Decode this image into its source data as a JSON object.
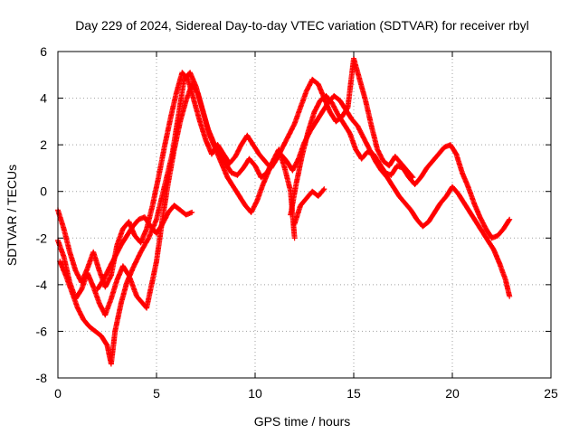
{
  "chart_data": {
    "type": "scatter",
    "title": "Day 229 of 2024, Sidereal Day-to-day VTEC variation (SDTVAR) for receiver rbyl",
    "xlabel": "GPS time / hours",
    "ylabel": "SDTVAR / TECUs",
    "xlim": [
      0,
      25
    ],
    "ylim": [
      -8,
      6
    ],
    "xticks": [
      "0",
      "5",
      "10",
      "15",
      "20",
      "25"
    ],
    "yticks": [
      "-8",
      "-6",
      "-4",
      "-2",
      "0",
      "2",
      "4",
      "6"
    ],
    "grid": true,
    "marker": "+",
    "color": "#ff0000",
    "series": [
      {
        "name": "track-1",
        "x": [
          0.0,
          0.3,
          0.6,
          0.9,
          1.2,
          1.5,
          1.8,
          2.1,
          2.4,
          2.7,
          3.0,
          3.3,
          3.6,
          4.0,
          4.5,
          5.0,
          5.3,
          5.6,
          5.9,
          6.2,
          6.5,
          6.8,
          7.1,
          7.4,
          7.7,
          8.0,
          8.3,
          8.6,
          8.9,
          9.2,
          9.5,
          9.8,
          10.1,
          10.4,
          10.7,
          11.0,
          11.3,
          11.6,
          11.9,
          12.2,
          12.5,
          12.8,
          13.1,
          13.4,
          13.7,
          14.0,
          14.3,
          14.6,
          14.9,
          15.2,
          15.5,
          15.8,
          16.1,
          16.4,
          16.7,
          17.0,
          17.3,
          17.6,
          17.9,
          18.2,
          18.5,
          18.8,
          19.1,
          19.4,
          19.7,
          20.0,
          20.3,
          20.6,
          20.9,
          21.2,
          21.5,
          21.8,
          22.1,
          22.4,
          22.7,
          22.9
        ],
        "y": [
          -2.1,
          -2.8,
          -3.9,
          -4.6,
          -4.2,
          -3.5,
          -4.1,
          -4.8,
          -5.3,
          -4.6,
          -3.8,
          -3.2,
          -3.6,
          -4.5,
          -5.0,
          -3.0,
          -1.2,
          0.4,
          1.8,
          3.0,
          3.9,
          4.6,
          4.2,
          3.3,
          2.4,
          1.8,
          1.2,
          0.6,
          0.2,
          -0.2,
          -0.6,
          -0.9,
          -0.4,
          0.3,
          0.9,
          1.4,
          1.6,
          1.3,
          0.9,
          1.4,
          2.1,
          2.6,
          3.0,
          3.4,
          3.8,
          4.1,
          3.9,
          3.5,
          3.1,
          2.8,
          2.3,
          1.8,
          1.3,
          0.9,
          0.6,
          0.2,
          -0.2,
          -0.5,
          -0.8,
          -1.2,
          -1.5,
          -1.3,
          -0.9,
          -0.5,
          -0.2,
          0.2,
          -0.1,
          -0.5,
          -0.9,
          -1.3,
          -1.7,
          -2.1,
          -2.5,
          -3.1,
          -3.8,
          -4.5
        ]
      },
      {
        "name": "track-2",
        "x": [
          0.1,
          0.4,
          0.7,
          1.0,
          1.3,
          1.6,
          1.9,
          2.2,
          2.5,
          2.7,
          2.9,
          3.2,
          3.5,
          3.8,
          4.2,
          4.6,
          5.0,
          5.4,
          5.8,
          6.1,
          6.4,
          6.7,
          7.0,
          7.3,
          7.6,
          7.9,
          8.2,
          8.5,
          8.8,
          9.1,
          9.4,
          9.7,
          10.0,
          10.3,
          10.6,
          10.9,
          11.2,
          11.5,
          11.8,
          12.0
        ],
        "y": [
          -3.0,
          -3.6,
          -4.3,
          -5.0,
          -5.5,
          -5.8,
          -6.0,
          -6.2,
          -6.6,
          -7.4,
          -6.0,
          -4.8,
          -3.9,
          -3.3,
          -2.6,
          -2.0,
          -1.2,
          0.2,
          1.6,
          3.2,
          4.8,
          5.1,
          4.5,
          3.6,
          2.7,
          2.1,
          1.6,
          1.2,
          0.8,
          0.7,
          1.0,
          1.4,
          1.1,
          0.6,
          0.8,
          1.3,
          1.8,
          1.0,
          0.0,
          -2.0
        ]
      },
      {
        "name": "track-3",
        "x": [
          0.0,
          0.3,
          0.6,
          0.9,
          1.2,
          1.5,
          1.8,
          2.1,
          2.4,
          2.7,
          3.0,
          3.3,
          3.6,
          3.9,
          4.2,
          4.5,
          4.8,
          5.1,
          5.4,
          5.7,
          6.0,
          6.3,
          6.6,
          6.9,
          7.2,
          7.5,
          7.8,
          8.1,
          8.4,
          8.7,
          9.0,
          9.3,
          9.6,
          9.9,
          10.2,
          10.5,
          10.8,
          11.1,
          11.4,
          11.7,
          12.0,
          12.3,
          12.6,
          12.9,
          13.2,
          13.5,
          13.8,
          14.1,
          14.4,
          14.7,
          15.0,
          15.3,
          15.6,
          15.9,
          16.2,
          16.5,
          16.8,
          17.1,
          17.4,
          17.7,
          18.0
        ],
        "y": [
          -0.8,
          -1.6,
          -2.6,
          -3.4,
          -3.9,
          -3.3,
          -2.6,
          -3.4,
          -4.1,
          -3.6,
          -2.3,
          -1.6,
          -1.3,
          -1.9,
          -2.2,
          -1.6,
          -0.6,
          0.6,
          1.9,
          3.1,
          4.2,
          5.1,
          4.8,
          3.9,
          3.0,
          2.2,
          1.6,
          2.0,
          1.6,
          1.2,
          1.5,
          2.0,
          2.4,
          2.0,
          1.6,
          1.3,
          1.0,
          1.4,
          1.9,
          2.4,
          2.9,
          3.6,
          4.3,
          4.8,
          4.6,
          4.0,
          3.4,
          3.0,
          3.2,
          3.6,
          5.7,
          4.8,
          3.9,
          2.8,
          1.8,
          1.3,
          1.1,
          1.5,
          1.2,
          0.9,
          0.6
        ]
      },
      {
        "name": "track-4",
        "x": [
          2.0,
          2.3,
          2.6,
          2.9,
          3.2,
          3.5,
          3.8,
          4.1,
          4.4,
          4.7,
          5.0,
          5.3,
          5.6,
          5.9,
          6.2,
          6.5,
          6.8
        ],
        "y": [
          -4.2,
          -3.8,
          -3.3,
          -2.8,
          -2.3,
          -1.9,
          -1.5,
          -1.2,
          -1.1,
          -1.5,
          -1.8,
          -1.4,
          -0.9,
          -0.6,
          -0.8,
          -1.0,
          -0.9
        ]
      },
      {
        "name": "track-5",
        "x": [
          11.8,
          12.1,
          12.4,
          12.7,
          13.0,
          13.3,
          13.6,
          13.9,
          14.2,
          14.5,
          14.8,
          15.1,
          15.4,
          15.7,
          16.0,
          16.3,
          16.6,
          16.9,
          17.2,
          17.5,
          17.8,
          18.1,
          18.4,
          18.7,
          19.0,
          19.3,
          19.6,
          19.9,
          20.2,
          20.5,
          20.8,
          21.1,
          21.4,
          21.7,
          22.0,
          22.3,
          22.6,
          22.9
        ],
        "y": [
          -1.0,
          0.4,
          1.6,
          2.6,
          3.4,
          3.9,
          4.1,
          3.8,
          3.3,
          2.9,
          2.5,
          1.8,
          1.4,
          1.7,
          1.6,
          1.2,
          0.8,
          0.7,
          1.1,
          1.0,
          0.6,
          0.3,
          0.6,
          1.0,
          1.3,
          1.6,
          1.9,
          2.0,
          1.6,
          0.8,
          0.2,
          -0.5,
          -1.1,
          -1.6,
          -2.0,
          -1.9,
          -1.6,
          -1.2
        ]
      },
      {
        "name": "track-6",
        "x": [
          12.0,
          12.3,
          12.6,
          12.9,
          13.2,
          13.5
        ],
        "y": [
          -1.4,
          -0.6,
          -0.3,
          0.0,
          -0.2,
          0.1
        ]
      }
    ]
  }
}
